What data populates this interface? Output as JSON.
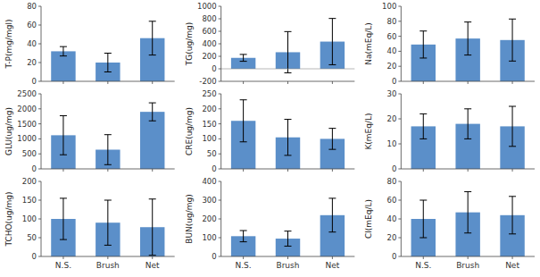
{
  "chart_data": [
    {
      "type": "bar",
      "categories": [
        "N.S.",
        "Brush",
        "Net"
      ],
      "ylabel": "T-P(mg/mgl)",
      "ylim": [
        0,
        80
      ],
      "yticks": [
        0,
        20,
        40,
        60,
        80
      ],
      "values": [
        32,
        20,
        46
      ],
      "errors": [
        5,
        10,
        18
      ],
      "color": "#5b8fc9",
      "tick_labels": "y"
    },
    {
      "type": "bar",
      "categories": [
        "N.S.",
        "Brush",
        "Net"
      ],
      "ylabel": "TG(ug/mg)",
      "ylim": [
        -200,
        1000
      ],
      "yticks": [
        -200,
        0,
        200,
        400,
        600,
        800,
        1000
      ],
      "values": [
        175,
        265,
        435
      ],
      "errors": [
        55,
        330,
        370
      ],
      "color": "#5b8fc9",
      "tick_labels": "y"
    },
    {
      "type": "bar",
      "categories": [
        "N.S.",
        "Brush",
        "Net"
      ],
      "ylabel": "Na(mEq/L)",
      "ylim": [
        0,
        100
      ],
      "yticks": [
        0,
        20,
        40,
        60,
        80,
        100
      ],
      "values": [
        49,
        57,
        55
      ],
      "errors": [
        18,
        22,
        28
      ],
      "color": "#5b8fc9",
      "tick_labels": "y"
    },
    {
      "type": "bar",
      "categories": [
        "N.S.",
        "Brush",
        "Net"
      ],
      "ylabel": "GLU(ug/mg)",
      "ylim": [
        0,
        2500
      ],
      "yticks": [
        0,
        500,
        1000,
        1500,
        2000,
        2500
      ],
      "values": [
        1120,
        640,
        1900
      ],
      "errors": [
        650,
        500,
        300
      ],
      "color": "#5b8fc9",
      "tick_labels": "y"
    },
    {
      "type": "bar",
      "categories": [
        "N.S.",
        "Brush",
        "Net"
      ],
      "ylabel": "CRE(ug/mg)",
      "ylim": [
        0,
        250
      ],
      "yticks": [
        0,
        50,
        100,
        150,
        200,
        250
      ],
      "values": [
        160,
        105,
        100
      ],
      "errors": [
        70,
        60,
        35
      ],
      "color": "#5b8fc9",
      "tick_labels": "y"
    },
    {
      "type": "bar",
      "categories": [
        "N.S.",
        "Brush",
        "Net"
      ],
      "ylabel": "K(mEq/L)",
      "ylim": [
        0,
        30
      ],
      "yticks": [
        0,
        10,
        20,
        30
      ],
      "values": [
        17,
        18,
        17
      ],
      "errors": [
        5,
        6,
        8
      ],
      "color": "#5b8fc9",
      "tick_labels": "y"
    },
    {
      "type": "bar",
      "categories": [
        "N.S.",
        "Brush",
        "Net"
      ],
      "ylabel": "TCHO(ug/mg)",
      "ylim": [
        0,
        200
      ],
      "yticks": [
        0,
        50,
        100,
        150,
        200
      ],
      "values": [
        100,
        90,
        78
      ],
      "errors": [
        55,
        60,
        75
      ],
      "color": "#5b8fc9"
    },
    {
      "type": "bar",
      "categories": [
        "N.S.",
        "Brush",
        "Net"
      ],
      "ylabel": "BUN(ug/mg)",
      "ylim": [
        0,
        400
      ],
      "yticks": [
        0,
        100,
        200,
        300,
        400
      ],
      "values": [
        108,
        95,
        220
      ],
      "errors": [
        30,
        40,
        90
      ],
      "color": "#5b8fc9"
    },
    {
      "type": "bar",
      "categories": [
        "N.S.",
        "Brush",
        "Net"
      ],
      "ylabel": "Cl(mEq/L)",
      "ylim": [
        0,
        80
      ],
      "yticks": [
        0,
        20,
        40,
        60,
        80
      ],
      "values": [
        40,
        47,
        44
      ],
      "errors": [
        20,
        22,
        20
      ],
      "color": "#5b8fc9"
    }
  ]
}
